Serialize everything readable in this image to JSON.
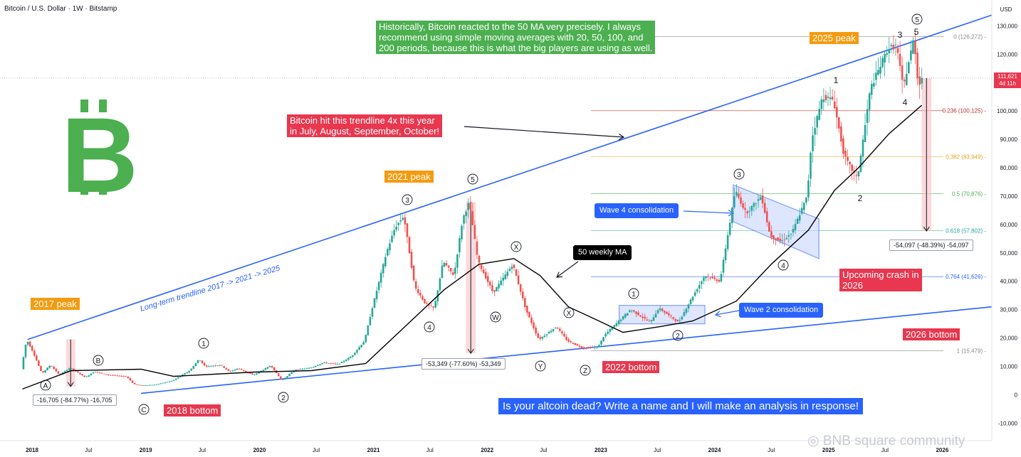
{
  "header": {
    "title": "Bitcoin / U.S. Dollar · 1W · Bitstamp",
    "currency": "USD"
  },
  "chart_data": {
    "type": "candlestick",
    "y_axis": {
      "ticks": [
        "130,000",
        "120,000",
        "110,000",
        "100,000",
        "90,000",
        "80,000",
        "70,000",
        "60,000",
        "50,000",
        "40,000",
        "30,000",
        "20,000",
        "10,000",
        "0",
        "-10,000"
      ],
      "range": [
        -10000,
        135000
      ]
    },
    "x_axis": {
      "ticks": [
        "2018",
        "Jul",
        "2019",
        "Jul",
        "2020",
        "Jul",
        "2021",
        "Jul",
        "2022",
        "Jul",
        "2023",
        "Jul",
        "2024",
        "Jul",
        "2025",
        "Jul",
        "2026"
      ],
      "range": [
        "2017-12",
        "2026-03"
      ]
    },
    "price_path": [
      [
        "2017-12-01",
        9000
      ],
      [
        "2017-12-18",
        19500
      ],
      [
        "2018-01-08",
        15000
      ],
      [
        "2018-02-05",
        7500
      ],
      [
        "2018-03-05",
        10500
      ],
      [
        "2018-04-02",
        7000
      ],
      [
        "2018-05-07",
        9500
      ],
      [
        "2018-06-25",
        6100
      ],
      [
        "2018-07-23",
        8200
      ],
      [
        "2018-09-03",
        7000
      ],
      [
        "2018-11-05",
        6400
      ],
      [
        "2018-11-26",
        3800
      ],
      [
        "2018-12-17",
        3300
      ],
      [
        "2019-02-04",
        3500
      ],
      [
        "2019-04-01",
        5000
      ],
      [
        "2019-05-27",
        8600
      ],
      [
        "2019-06-24",
        12500
      ],
      [
        "2019-07-15",
        10000
      ],
      [
        "2019-09-02",
        10500
      ],
      [
        "2019-09-30",
        8100
      ],
      [
        "2019-10-28",
        9300
      ],
      [
        "2019-12-16",
        6900
      ],
      [
        "2020-02-10",
        10300
      ],
      [
        "2020-03-16",
        5000
      ],
      [
        "2020-04-27",
        8800
      ],
      [
        "2020-06-15",
        9400
      ],
      [
        "2020-07-27",
        11300
      ],
      [
        "2020-09-14",
        10800
      ],
      [
        "2020-10-26",
        13500
      ],
      [
        "2020-12-07",
        19000
      ],
      [
        "2020-12-28",
        29000
      ],
      [
        "2021-01-04",
        32000
      ],
      [
        "2021-02-15",
        50000
      ],
      [
        "2021-03-15",
        59000
      ],
      [
        "2021-04-12",
        63000
      ],
      [
        "2021-05-17",
        38000
      ],
      [
        "2021-06-21",
        32000
      ],
      [
        "2021-07-19",
        30500
      ],
      [
        "2021-08-16",
        47000
      ],
      [
        "2021-09-20",
        42000
      ],
      [
        "2021-10-18",
        62000
      ],
      [
        "2021-11-08",
        68000
      ],
      [
        "2021-12-06",
        47000
      ],
      [
        "2022-01-24",
        36000
      ],
      [
        "2022-03-28",
        46000
      ],
      [
        "2022-05-09",
        30000
      ],
      [
        "2022-06-13",
        21000
      ],
      [
        "2022-06-20",
        19500
      ],
      [
        "2022-08-15",
        24000
      ],
      [
        "2022-09-19",
        19000
      ],
      [
        "2022-11-07",
        16500
      ],
      [
        "2022-12-26",
        16800
      ],
      [
        "2023-01-16",
        21000
      ],
      [
        "2023-03-13",
        27000
      ],
      [
        "2023-04-10",
        30000
      ],
      [
        "2023-06-12",
        25500
      ],
      [
        "2023-07-10",
        30500
      ],
      [
        "2023-09-11",
        25500
      ],
      [
        "2023-10-23",
        34000
      ],
      [
        "2023-12-04",
        42000
      ],
      [
        "2024-01-22",
        40000
      ],
      [
        "2024-03-11",
        72000
      ],
      [
        "2024-04-15",
        64000
      ],
      [
        "2024-06-03",
        70000
      ],
      [
        "2024-07-01",
        56000
      ],
      [
        "2024-08-05",
        54000
      ],
      [
        "2024-09-09",
        57000
      ],
      [
        "2024-10-28",
        70000
      ],
      [
        "2024-11-11",
        90000
      ],
      [
        "2024-12-16",
        105000
      ],
      [
        "2025-01-20",
        104000
      ],
      [
        "2025-02-24",
        84000
      ],
      [
        "2025-04-07",
        76000
      ],
      [
        "2025-05-19",
        108000
      ],
      [
        "2025-07-14",
        122000
      ],
      [
        "2025-08-11",
        123000
      ],
      [
        "2025-09-01",
        108000
      ],
      [
        "2025-10-06",
        126000
      ],
      [
        "2025-10-20",
        108000
      ],
      [
        "2025-10-27",
        111621
      ]
    ],
    "ma_path": [
      [
        "2017-12-01",
        2000
      ],
      [
        "2018-05-07",
        8500
      ],
      [
        "2018-12-17",
        9000
      ],
      [
        "2019-04-01",
        6500
      ],
      [
        "2019-12-16",
        8000
      ],
      [
        "2020-06-15",
        8500
      ],
      [
        "2020-12-07",
        11000
      ],
      [
        "2021-04-12",
        24000
      ],
      [
        "2021-08-16",
        37000
      ],
      [
        "2021-12-06",
        46000
      ],
      [
        "2022-03-28",
        48000
      ],
      [
        "2022-06-20",
        42000
      ],
      [
        "2022-09-19",
        31000
      ],
      [
        "2022-12-26",
        26000
      ],
      [
        "2023-03-13",
        22000
      ],
      [
        "2023-07-10",
        24000
      ],
      [
        "2023-10-23",
        26000
      ],
      [
        "2024-03-11",
        33000
      ],
      [
        "2024-07-01",
        46000
      ],
      [
        "2024-10-28",
        58000
      ],
      [
        "2025-01-20",
        72000
      ],
      [
        "2025-04-07",
        80000
      ],
      [
        "2025-07-14",
        92000
      ],
      [
        "2025-10-27",
        102000
      ]
    ],
    "series": [
      {
        "name": "50 weekly MA",
        "color": "#000000"
      }
    ],
    "current_price": {
      "value": "111,621",
      "countdown": "4d 11h"
    },
    "fibonacci": [
      {
        "ratio": "0",
        "value": 126272,
        "label": "0 (126,272)",
        "color": "#888888"
      },
      {
        "ratio": "0.236",
        "value": 100125,
        "label": "0.236 (100,125)",
        "color": "#c62828"
      },
      {
        "ratio": "0.382",
        "value": 83949,
        "label": "0.382 (83,949)",
        "color": "#e6a020"
      },
      {
        "ratio": "0.5",
        "value": 70876,
        "label": "0.5 (70,876)",
        "color": "#4caf50"
      },
      {
        "ratio": "0.618",
        "value": 57802,
        "label": "0.618 (57,802)",
        "color": "#26a69a"
      },
      {
        "ratio": "0.764",
        "value": 41626,
        "label": "0.764 (41,626)",
        "color": "#2962ff"
      },
      {
        "ratio": "1",
        "value": 15479,
        "label": "1 (15,479)",
        "color": "#888888"
      }
    ],
    "measurements": [
      "-16,705 (-84.77%) -16,705",
      "-53,349 (-77.60%) -53,349",
      "-54,097 (-48.39%) -54,097"
    ],
    "wave_labels": [
      "A",
      "B",
      "C",
      "1",
      "2",
      "3",
      "4",
      "5",
      "W",
      "X",
      "Y",
      "X",
      "Z",
      "1",
      "2",
      "3",
      "4",
      "1",
      "2",
      "3",
      "4",
      "5",
      "5"
    ],
    "annotations": {
      "peak_2017": "2017 peak",
      "peak_2021": "2021 peak",
      "peak_2025": "2025 peak",
      "bottom_2018": "2018 bottom",
      "bottom_2022": "2022 bottom",
      "bottom_2026": "2026 bottom",
      "crash_line1": "Upcoming crash in",
      "crash_line2": "2026",
      "trendline_note_1": "Bitcoin hit this trendline 4x this year",
      "trendline_note_2": "in July, August, September, October!",
      "ma_note_1": "Historically, Bitcoin reacted to the 50 MA very precisely. I always",
      "ma_note_2": "recommend using simple moving averages with 20, 50, 100, and",
      "ma_note_3": "200 periods, because this is what the big players are using as well.",
      "wave4": "Wave 4 consolidation",
      "wave2": "Wave 2 consolidation",
      "ma_label": "50 weekly MA",
      "trendline_label": "Long-term trendline 2017 -> 2021 -> 2025",
      "question": "Is your altcoin dead? Write a name and I will make an analysis in response!"
    }
  },
  "logo": {
    "symbol": "B",
    "name": "bitcoin-logo",
    "color": "#4caf50"
  },
  "watermark": "BNB square community",
  "colors": {
    "up": "#26a69a",
    "down": "#ef5350",
    "trendline": "#2962ff",
    "accent_green": "#4caf50",
    "accent_red": "#e8374f",
    "accent_orange": "#f59b0f"
  }
}
